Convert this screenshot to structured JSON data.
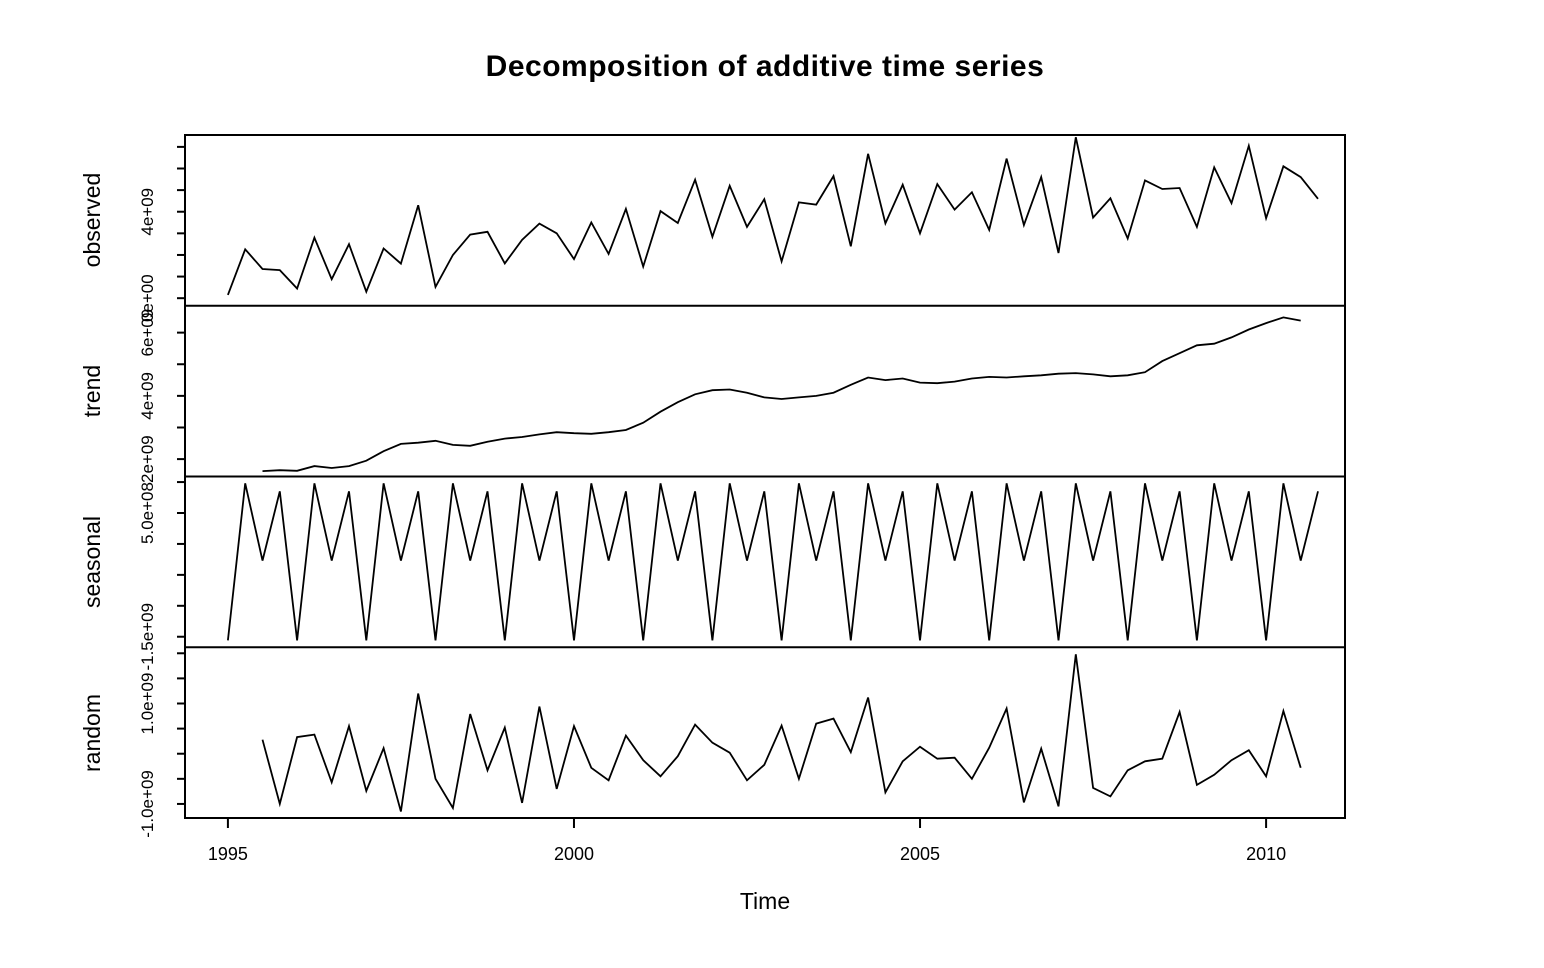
{
  "title": "Decomposition of additive time series",
  "x_axis": {
    "label": "Time",
    "ticks": [
      "1995",
      "2000",
      "2005",
      "2010"
    ]
  },
  "colors": {
    "background": "#ffffff",
    "line": "#000000",
    "text": "#000000"
  },
  "chart_data": {
    "type": "line",
    "title": "Decomposition of additive time series",
    "xlabel": "Time",
    "grid": false,
    "legend": "none",
    "y_unit": "1e9",
    "x_unit": "year (quarterly, step 0.25)",
    "xlim": [
      1994.38,
      2011.14
    ],
    "x_tick_values": [
      1995,
      2000,
      2005,
      2010
    ],
    "panels": [
      {
        "name": "observed",
        "x_start": 1995.0,
        "step": 0.25,
        "ylim": [
          -0.35,
          7.55
        ],
        "y_ticks": [
          {
            "v": 0,
            "label": "0e+00"
          },
          {
            "v": 1
          },
          {
            "v": 2
          },
          {
            "v": 3
          },
          {
            "v": 4,
            "label": "4e+09"
          },
          {
            "v": 5
          },
          {
            "v": 6
          },
          {
            "v": 7
          }
        ],
        "values": [
          0.15,
          2.26,
          1.35,
          1.3,
          0.45,
          2.8,
          0.88,
          2.5,
          0.3,
          2.3,
          1.6,
          4.3,
          0.52,
          2.0,
          2.94,
          3.07,
          1.61,
          2.7,
          3.45,
          3.0,
          1.81,
          3.5,
          2.05,
          4.13,
          1.46,
          4.03,
          3.48,
          5.48,
          2.84,
          5.2,
          3.3,
          4.58,
          1.7,
          4.43,
          4.33,
          5.65,
          2.4,
          6.68,
          3.46,
          5.25,
          3.0,
          5.28,
          4.1,
          4.9,
          3.16,
          6.46,
          3.38,
          5.6,
          2.09,
          7.45,
          3.73,
          4.62,
          2.76,
          5.45,
          5.05,
          5.1,
          3.3,
          6.05,
          4.4,
          7.05,
          3.7,
          6.1,
          5.6,
          4.6
        ]
      },
      {
        "name": "trend",
        "x_start": 1995.5,
        "step": 0.25,
        "ylim": [
          1.45,
          6.85
        ],
        "y_ticks": [
          {
            "v": 2,
            "label": "2e+09"
          },
          {
            "v": 3
          },
          {
            "v": 4,
            "label": "4e+09"
          },
          {
            "v": 5
          },
          {
            "v": 6,
            "label": "6e+09"
          }
        ],
        "values": [
          1.62,
          1.65,
          1.63,
          1.78,
          1.72,
          1.78,
          1.95,
          2.25,
          2.48,
          2.52,
          2.58,
          2.45,
          2.42,
          2.55,
          2.65,
          2.7,
          2.78,
          2.85,
          2.82,
          2.8,
          2.85,
          2.92,
          3.15,
          3.5,
          3.8,
          4.05,
          4.18,
          4.2,
          4.1,
          3.95,
          3.9,
          3.95,
          4.0,
          4.1,
          4.35,
          4.58,
          4.5,
          4.55,
          4.42,
          4.4,
          4.45,
          4.55,
          4.6,
          4.58,
          4.62,
          4.65,
          4.7,
          4.72,
          4.68,
          4.62,
          4.65,
          4.75,
          5.1,
          5.35,
          5.6,
          5.65,
          5.85,
          6.1,
          6.3,
          6.48,
          6.38
        ]
      },
      {
        "name": "seasonal",
        "x_start": 1995.0,
        "step": 0.25,
        "ylim": [
          -1.67,
          1.09
        ],
        "y_ticks": [
          {
            "v": -1.5,
            "label": "-1.5e+09"
          },
          {
            "v": -1.0
          },
          {
            "v": -0.5
          },
          {
            "v": 0
          },
          {
            "v": 0.5,
            "label": "5.0e+08"
          },
          {
            "v": 1.0
          }
        ],
        "pattern_q1_q4": [
          -1.56,
          0.98,
          -0.27,
          0.85
        ],
        "n_points": 64
      },
      {
        "name": "random",
        "x_start": 1995.5,
        "step": 0.25,
        "ylim": [
          -1.28,
          2.12
        ],
        "y_ticks": [
          {
            "v": -1.0,
            "label": "-1.0e+09"
          },
          {
            "v": -0.5
          },
          {
            "v": 0
          },
          {
            "v": 0.5
          },
          {
            "v": 1.0,
            "label": "1.0e+09"
          },
          {
            "v": 1.5
          },
          {
            "v": 2.0
          }
        ],
        "values": [
          0.28,
          -1.0,
          0.33,
          0.38,
          -0.57,
          0.55,
          -0.74,
          0.11,
          -1.15,
          1.2,
          -0.5,
          -1.08,
          0.79,
          -0.33,
          0.52,
          -0.98,
          0.94,
          -0.7,
          0.55,
          -0.28,
          -0.53,
          0.36,
          -0.13,
          -0.45,
          -0.05,
          0.58,
          0.22,
          0.02,
          -0.53,
          -0.22,
          0.56,
          -0.5,
          0.6,
          0.7,
          0.03,
          1.12,
          -0.77,
          -0.15,
          0.14,
          -0.1,
          -0.08,
          -0.5,
          0.12,
          0.9,
          -0.97,
          0.1,
          -1.05,
          1.98,
          -0.68,
          -0.85,
          -0.33,
          -0.15,
          -0.1,
          0.83,
          -0.62,
          -0.42,
          -0.13,
          0.07,
          -0.45,
          0.85,
          -0.28
        ]
      }
    ]
  }
}
